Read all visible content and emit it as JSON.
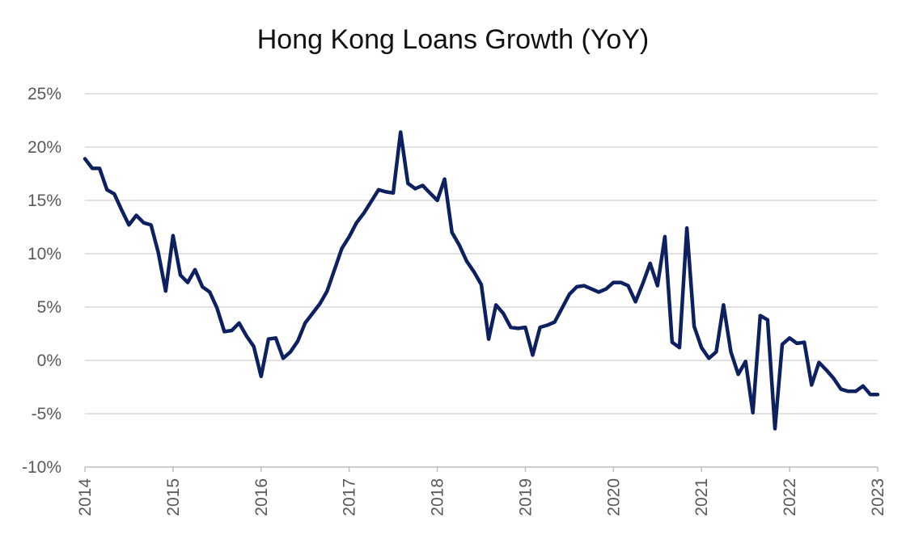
{
  "chart_data": {
    "type": "line",
    "title": "Hong Kong Loans Growth (YoY)",
    "xlabel": "",
    "ylabel": "",
    "x_tick_labels": [
      "2014",
      "2015",
      "2016",
      "2017",
      "2018",
      "2019",
      "2020",
      "2021",
      "2022",
      "2023"
    ],
    "y_tick_labels": [
      "25%",
      "20%",
      "15%",
      "10%",
      "5%",
      "0%",
      "-5%",
      "-10%"
    ],
    "x_range": [
      "2014-01",
      "2023-01"
    ],
    "ylim": [
      -10,
      25
    ],
    "y_unit": "%",
    "grid": "horizontal",
    "legend": "none",
    "line_color": "#0d2060",
    "series": [
      {
        "x": [
          "2014-01",
          "2014-02",
          "2014-03",
          "2014-04",
          "2014-05",
          "2014-06",
          "2014-07",
          "2014-08",
          "2014-09",
          "2014-10",
          "2014-11",
          "2014-12",
          "2015-01",
          "2015-02",
          "2015-03",
          "2015-04",
          "2015-05",
          "2015-06",
          "2015-07",
          "2015-08",
          "2015-09",
          "2015-10",
          "2015-11",
          "2015-12",
          "2016-01",
          "2016-02",
          "2016-03",
          "2016-04",
          "2016-05",
          "2016-06",
          "2016-07",
          "2016-08",
          "2016-09",
          "2016-10",
          "2016-11",
          "2016-12",
          "2017-01",
          "2017-02",
          "2017-03",
          "2017-04",
          "2017-05",
          "2017-06",
          "2017-07",
          "2017-08",
          "2017-09",
          "2017-10",
          "2017-11",
          "2017-12",
          "2018-01",
          "2018-02",
          "2018-03",
          "2018-04",
          "2018-05",
          "2018-06",
          "2018-07",
          "2018-08",
          "2018-09",
          "2018-10",
          "2018-11",
          "2018-12",
          "2019-01",
          "2019-02",
          "2019-03",
          "2019-04",
          "2019-05",
          "2019-06",
          "2019-07",
          "2019-08",
          "2019-09",
          "2019-10",
          "2019-11",
          "2019-12",
          "2020-01",
          "2020-02",
          "2020-03",
          "2020-04",
          "2020-05",
          "2020-06",
          "2020-07",
          "2020-08",
          "2020-09",
          "2020-10",
          "2020-11",
          "2020-12",
          "2021-01",
          "2021-02",
          "2021-03",
          "2021-04",
          "2021-05",
          "2021-06",
          "2021-07",
          "2021-08",
          "2021-09",
          "2021-10",
          "2021-11",
          "2021-12",
          "2022-01",
          "2022-02",
          "2022-03",
          "2022-04",
          "2022-05",
          "2022-06",
          "2022-07",
          "2022-08",
          "2022-09",
          "2022-10",
          "2022-11",
          "2022-12",
          "2023-01"
        ],
        "values": [
          18.9,
          18.0,
          18.0,
          16.0,
          15.6,
          14.1,
          12.7,
          13.6,
          12.9,
          12.7,
          10.1,
          6.5,
          11.7,
          8.0,
          7.3,
          8.5,
          6.9,
          6.4,
          4.9,
          2.7,
          2.8,
          3.5,
          2.3,
          1.3,
          -1.5,
          2.0,
          2.1,
          0.2,
          0.8,
          1.8,
          3.5,
          4.4,
          5.3,
          6.5,
          8.5,
          10.5,
          11.6,
          12.9,
          13.8,
          14.9,
          16.0,
          15.8,
          15.7,
          21.4,
          16.6,
          16.1,
          16.4,
          15.7,
          15.0,
          17.0,
          12.0,
          10.8,
          9.3,
          8.3,
          7.1,
          2.0,
          5.2,
          4.4,
          3.1,
          3.0,
          3.1,
          0.5,
          3.1,
          3.3,
          3.6,
          4.9,
          6.2,
          6.9,
          7.0,
          6.7,
          6.4,
          6.7,
          7.3,
          7.3,
          7.0,
          5.5,
          7.2,
          9.1,
          7.0,
          11.6,
          1.7,
          1.2,
          12.4,
          3.2,
          1.2,
          0.2,
          0.8,
          5.2,
          0.8,
          -1.3,
          -0.1,
          -4.9,
          4.2,
          3.8,
          -6.4,
          1.5,
          2.1,
          1.6,
          1.7,
          -2.3,
          -0.2,
          -0.9,
          -1.7,
          -2.7,
          -2.9,
          -2.9,
          -2.4,
          -3.2,
          -3.2
        ]
      }
    ]
  }
}
